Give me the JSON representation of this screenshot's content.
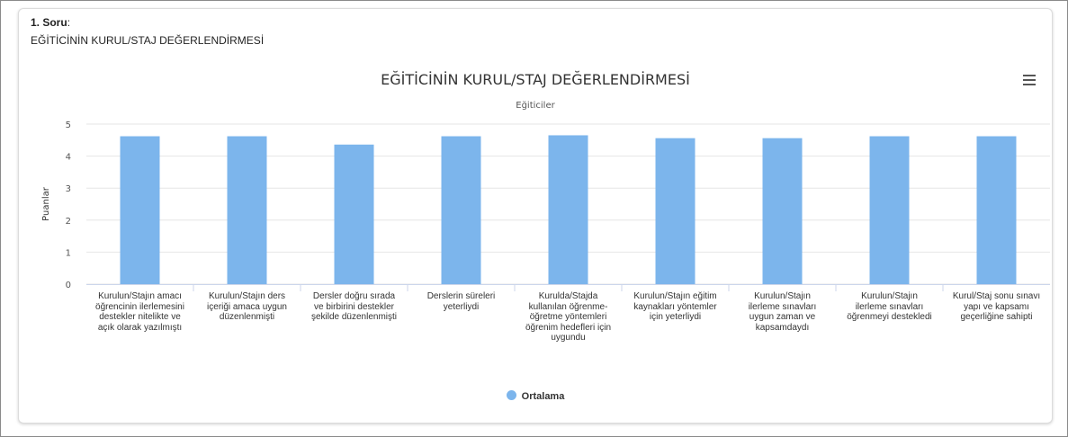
{
  "question": {
    "number_label": "1. Soru",
    "number_suffix": ":",
    "text": "EĞİTİCİNİN KURUL/STAJ DEĞERLENDİRMESİ"
  },
  "chart_data": {
    "type": "bar",
    "title": "EĞİTİCİNİN KURUL/STAJ DEĞERLENDİRMESİ",
    "subtitle": "Eğiticiler",
    "ylabel": "Puanlar",
    "xlabel": "",
    "ylim": [
      0,
      5
    ],
    "yticks": [
      "0",
      "1",
      "2",
      "3",
      "4",
      "5"
    ],
    "grid": true,
    "legend_position": "bottom-center",
    "categories": [
      "Kurulun/Stajın amacı öğrencinin ilerlemesini destekler nitelikte ve açık olarak yazılmıştı",
      "Kurulun/Stajın ders içeriği amaca uygun düzenlenmişti",
      "Dersler doğru sırada ve birbirini destekler şekilde düzenlenmişti",
      "Derslerin süreleri yeterliydi",
      "Kurulda/Stajda kullanılan öğrenme-öğretme yöntemleri öğrenim hedefleri için uygundu",
      "Kurulun/Stajın eğitim kaynakları yöntemler için yeterliydi",
      "Kurulun/Stajın ilerleme sınavları uygun zaman ve kapsamdaydı",
      "Kurulun/Stajın ilerleme sınavları öğrenmeyi destekledi",
      "Kurul/Staj sonu sınavı yapı ve kapsamı geçerliğine sahipti"
    ],
    "series": [
      {
        "name": "Ortalama",
        "color": "#7cb5ec",
        "values": [
          4.62,
          4.62,
          4.36,
          4.62,
          4.65,
          4.56,
          4.56,
          4.62,
          4.62
        ]
      }
    ]
  },
  "icons": {
    "menu": "hamburger-menu-icon"
  }
}
